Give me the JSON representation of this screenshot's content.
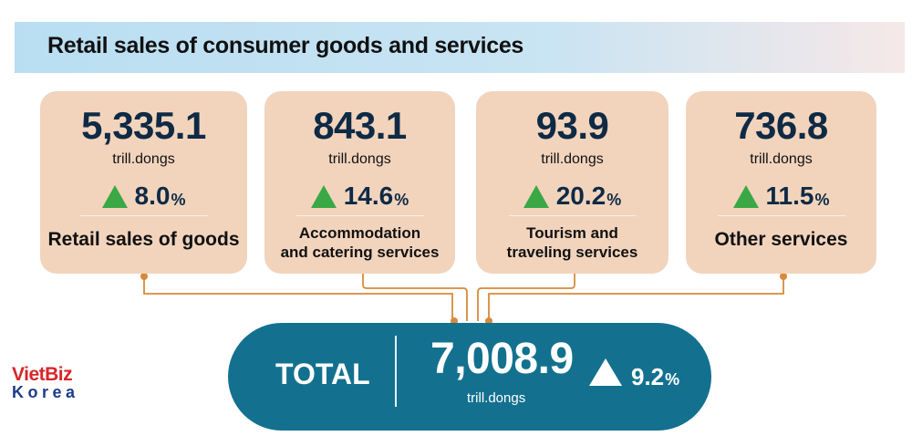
{
  "title": "Retail sales of consumer goods and services",
  "colors": {
    "card_bg": "#f2d4bd",
    "connector": "#d78a3a",
    "up_triangle": "#3aa845",
    "total_bg": "#13718f",
    "value_text": "#0e2a45"
  },
  "cards": [
    {
      "value": "5,335.1",
      "unit": "trill.dongs",
      "growth": "8.0",
      "growth_unit": "%",
      "growth_icon": "up-triangle-icon",
      "label_lines": [
        "Retail sales of goods"
      ]
    },
    {
      "value": "843.1",
      "unit": "trill.dongs",
      "growth": "14.6",
      "growth_unit": "%",
      "growth_icon": "up-triangle-icon",
      "label_lines": [
        "Accommodation",
        "and catering services"
      ]
    },
    {
      "value": "93.9",
      "unit": "trill.dongs",
      "growth": "20.2",
      "growth_unit": "%",
      "growth_icon": "up-triangle-icon",
      "label_lines": [
        "Tourism and",
        "traveling services"
      ]
    },
    {
      "value": "736.8",
      "unit": "trill.dongs",
      "growth": "11.5",
      "growth_unit": "%",
      "growth_icon": "up-triangle-icon",
      "label_lines": [
        "Other services"
      ]
    }
  ],
  "total": {
    "label": "TOTAL",
    "value": "7,008.9",
    "unit": "trill.dongs",
    "growth": "9.2",
    "growth_unit": "%",
    "growth_icon": "up-triangle-icon"
  },
  "logo": {
    "line1": "VietBiz",
    "line2": "Korea"
  }
}
